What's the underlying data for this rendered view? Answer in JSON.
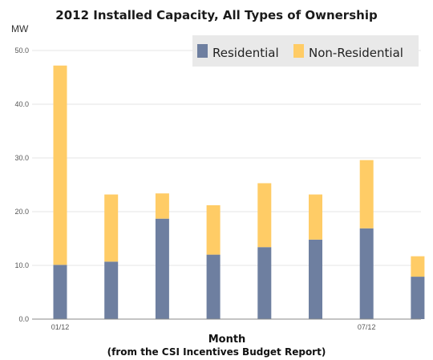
{
  "chart_data": {
    "type": "bar",
    "stacked": true,
    "title": "2012 Installed Capacity, All Types of Ownership",
    "ylabel": "MW",
    "xlabel": "Month",
    "source_note": "(from the CSI Incentives Budget Report)",
    "ylim": [
      0,
      50
    ],
    "yticks": [
      "0.0",
      "10.0",
      "20.0",
      "30.0",
      "40.0",
      "50.0"
    ],
    "yticks_values": [
      0,
      10,
      20,
      30,
      40,
      50
    ],
    "grid": true,
    "legend_position": "top-right",
    "categories": [
      "01/12",
      "",
      "",
      "",
      "",
      "",
      "07/12",
      ""
    ],
    "series": [
      {
        "name": "Residential",
        "color": "#6e7fa0",
        "values": [
          10.1,
          10.7,
          18.7,
          12.0,
          13.4,
          14.8,
          16.9,
          7.9
        ]
      },
      {
        "name": "Non-Residential",
        "color": "#ffcc66",
        "values": [
          37.1,
          12.5,
          4.7,
          9.2,
          11.9,
          8.4,
          12.7,
          3.8
        ]
      }
    ]
  }
}
